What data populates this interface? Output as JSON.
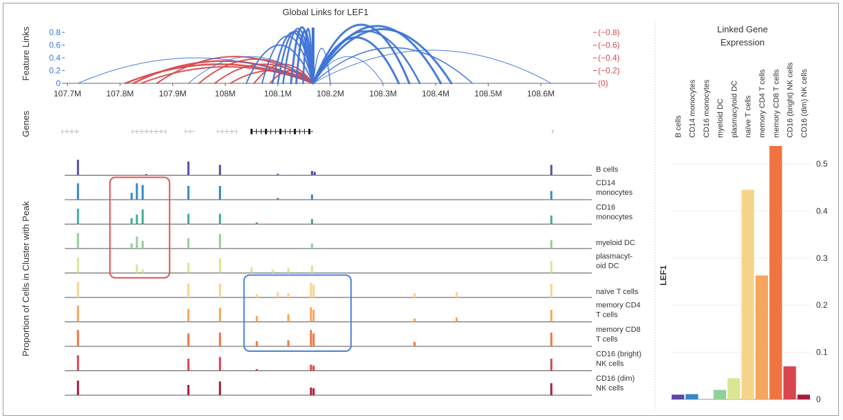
{
  "chart_data": {
    "type": "genome-track",
    "arc_plot": {
      "title": "Global Links for LEF1",
      "ylabel": "Feature Links",
      "left_ticks": [
        "0",
        "0.2",
        "0.4",
        "0.6",
        "0.8"
      ],
      "right_ticks": [
        "(0)",
        "(−0.2)",
        "(−0.4)",
        "(−0.6)",
        "(−0.8)"
      ],
      "x_ticks": [
        "107.7M",
        "107.8M",
        "107.9M",
        "108M",
        "108.1M",
        "108.2M",
        "108.3M",
        "108.4M",
        "108.5M",
        "108.6M"
      ],
      "xlim": [
        107.69,
        108.625
      ],
      "anchor": 108.167,
      "positive_colour": "#3f74d6",
      "negative_colour": "#d84a4a",
      "positive_links": [
        {
          "x": 107.72,
          "h": 0.4,
          "w": 1
        },
        {
          "x": 107.93,
          "h": 0.42,
          "w": 1
        },
        {
          "x": 108.04,
          "h": 0.6,
          "w": 2
        },
        {
          "x": 108.07,
          "h": 0.74,
          "w": 2
        },
        {
          "x": 108.09,
          "h": 0.8,
          "w": 2.5
        },
        {
          "x": 108.1,
          "h": 0.82,
          "w": 2.5
        },
        {
          "x": 108.11,
          "h": 0.86,
          "w": 2.5
        },
        {
          "x": 108.125,
          "h": 0.88,
          "w": 3
        },
        {
          "x": 108.135,
          "h": 0.82,
          "w": 3
        },
        {
          "x": 108.148,
          "h": 0.86,
          "w": 2.5
        },
        {
          "x": 108.2,
          "h": 0.55,
          "w": 1.5
        },
        {
          "x": 108.3,
          "h": 0.42,
          "w": 1
        },
        {
          "x": 108.33,
          "h": 0.72,
          "w": 3
        },
        {
          "x": 108.35,
          "h": 0.92,
          "w": 3
        },
        {
          "x": 108.37,
          "h": 0.82,
          "w": 2.5
        },
        {
          "x": 108.41,
          "h": 0.9,
          "w": 3
        },
        {
          "x": 108.43,
          "h": 0.85,
          "w": 3
        },
        {
          "x": 108.47,
          "h": 0.56,
          "w": 1.5
        },
        {
          "x": 108.62,
          "h": 0.52,
          "w": 1
        }
      ],
      "negative_links": [
        {
          "x": 107.81,
          "h": 0.3,
          "w": 2.5
        },
        {
          "x": 107.825,
          "h": 0.35,
          "w": 2.5
        },
        {
          "x": 107.84,
          "h": 0.26,
          "w": 2
        },
        {
          "x": 107.87,
          "h": 0.42,
          "w": 2
        },
        {
          "x": 107.95,
          "h": 0.38,
          "w": 2
        },
        {
          "x": 107.98,
          "h": 0.3,
          "w": 2
        },
        {
          "x": 108.01,
          "h": 0.2,
          "w": 2
        },
        {
          "x": 108.055,
          "h": 0.3,
          "w": 2
        },
        {
          "x": 108.085,
          "h": 0.2,
          "w": 2
        }
      ]
    },
    "genes_track": {
      "ylabel": "Genes",
      "genes": [
        {
          "start": 107.69,
          "end": 107.722
        },
        {
          "start": 107.823,
          "end": 107.888
        },
        {
          "start": 107.924,
          "end": 107.942
        },
        {
          "start": 107.985,
          "end": 108.022
        },
        {
          "start": 108.05,
          "end": 108.167,
          "highlight": true
        },
        {
          "start": 108.622,
          "end": 108.625
        }
      ]
    },
    "coverage": {
      "ylabel": "Proportion of Cells in Cluster with Peak",
      "tracks": [
        {
          "label": [
            "B cells"
          ],
          "color": "#5b4aa5",
          "peaks": [
            [
              107.72,
              0.9
            ],
            [
              107.93,
              0.8
            ],
            [
              107.99,
              0.6
            ],
            [
              107.85,
              0.06
            ],
            [
              108.1,
              0.08
            ],
            [
              108.165,
              0.25
            ],
            [
              108.17,
              0.2
            ],
            [
              108.62,
              0.6
            ]
          ]
        },
        {
          "label": [
            "CD14",
            "monocytes"
          ],
          "color": "#3588c1",
          "peaks": [
            [
              107.72,
              0.95
            ],
            [
              107.822,
              0.4
            ],
            [
              107.832,
              0.95
            ],
            [
              107.843,
              0.85
            ],
            [
              107.93,
              0.8
            ],
            [
              107.99,
              0.8
            ],
            [
              108.1,
              0.1
            ],
            [
              108.165,
              0.3
            ],
            [
              108.62,
              0.5
            ]
          ]
        },
        {
          "label": [
            "CD16",
            "monocytes"
          ],
          "color": "#42ab9a",
          "peaks": [
            [
              107.72,
              0.9
            ],
            [
              107.822,
              0.35
            ],
            [
              107.832,
              0.55
            ],
            [
              107.843,
              0.85
            ],
            [
              107.93,
              0.6
            ],
            [
              107.99,
              0.6
            ],
            [
              108.06,
              0.1
            ],
            [
              108.165,
              0.3
            ],
            [
              108.62,
              0.5
            ]
          ]
        },
        {
          "label": [
            "myeloid DC"
          ],
          "color": "#93cf9a",
          "peaks": [
            [
              107.72,
              0.9
            ],
            [
              107.822,
              0.3
            ],
            [
              107.832,
              0.7
            ],
            [
              107.843,
              0.45
            ],
            [
              107.93,
              0.6
            ],
            [
              107.99,
              0.85
            ],
            [
              108.165,
              0.3
            ],
            [
              108.62,
              0.5
            ]
          ]
        },
        {
          "label": [
            "plasmacyt-",
            "oid DC"
          ],
          "color": "#dbe692",
          "peaks": [
            [
              107.72,
              0.9
            ],
            [
              107.832,
              0.5
            ],
            [
              107.843,
              0.2
            ],
            [
              107.93,
              0.6
            ],
            [
              107.99,
              0.85
            ],
            [
              108.05,
              0.35
            ],
            [
              108.09,
              0.2
            ],
            [
              108.12,
              0.3
            ],
            [
              108.165,
              0.45
            ],
            [
              108.62,
              0.7
            ]
          ]
        },
        {
          "label": [
            "naïve T cells"
          ],
          "color": "#f6d48c",
          "peaks": [
            [
              107.72,
              0.9
            ],
            [
              107.93,
              0.8
            ],
            [
              107.99,
              0.8
            ],
            [
              108.06,
              0.2
            ],
            [
              108.1,
              0.3
            ],
            [
              108.12,
              0.25
            ],
            [
              108.163,
              0.85
            ],
            [
              108.168,
              0.75
            ],
            [
              108.36,
              0.25
            ],
            [
              108.44,
              0.3
            ],
            [
              108.62,
              0.8
            ]
          ]
        },
        {
          "label": [
            "memory CD4",
            "T cells"
          ],
          "color": "#f5a55c",
          "peaks": [
            [
              107.72,
              0.95
            ],
            [
              107.93,
              0.75
            ],
            [
              107.99,
              0.8
            ],
            [
              108.06,
              0.35
            ],
            [
              108.12,
              0.45
            ],
            [
              108.163,
              0.85
            ],
            [
              108.168,
              0.7
            ],
            [
              108.36,
              0.2
            ],
            [
              108.44,
              0.25
            ],
            [
              108.62,
              0.7
            ]
          ]
        },
        {
          "label": [
            "memory CD8",
            "T cells"
          ],
          "color": "#f07442",
          "peaks": [
            [
              107.72,
              0.95
            ],
            [
              107.93,
              0.75
            ],
            [
              107.99,
              0.8
            ],
            [
              108.06,
              0.3
            ],
            [
              108.12,
              0.35
            ],
            [
              108.163,
              0.95
            ],
            [
              108.168,
              0.75
            ],
            [
              108.36,
              0.25
            ],
            [
              108.62,
              0.8
            ]
          ]
        },
        {
          "label": [
            "CD16 (bright)",
            "NK cells"
          ],
          "color": "#d9464c",
          "peaks": [
            [
              107.72,
              0.9
            ],
            [
              107.93,
              0.7
            ],
            [
              107.99,
              0.8
            ],
            [
              108.06,
              0.1
            ],
            [
              108.163,
              0.35
            ],
            [
              108.168,
              0.3
            ],
            [
              108.62,
              0.7
            ]
          ]
        },
        {
          "label": [
            "CD16 (dim)",
            "NK cells"
          ],
          "color": "#a61c3c",
          "peaks": [
            [
              107.72,
              0.85
            ],
            [
              107.93,
              0.6
            ],
            [
              107.99,
              0.8
            ],
            [
              108.163,
              0.45
            ],
            [
              108.168,
              0.4
            ],
            [
              108.62,
              0.7
            ]
          ]
        }
      ]
    },
    "expression": {
      "type": "bar",
      "title": [
        "Linked Gene",
        "Expression"
      ],
      "ylabel": "LEF1",
      "y_ticks": [
        "0",
        "0.1",
        "0.2",
        "0.3",
        "0.4",
        "0.5"
      ],
      "ylim": [
        0,
        0.55
      ],
      "categories": [
        "B cells",
        "CD14 monocytes",
        "CD16 monocytes",
        "myeloid DC",
        "plasmacytoid DC",
        "naïve T cells",
        "memory CD4 T cells",
        "memory CD8 T cells",
        "CD16 (bright) NK cells",
        "CD16 (dim) NK cells"
      ],
      "values": [
        0.01,
        0.011,
        0.0,
        0.02,
        0.045,
        0.445,
        0.263,
        0.538,
        0.07,
        0.01
      ],
      "colors": [
        "#5b4aa5",
        "#3588c1",
        "#42ab9a",
        "#93cf9a",
        "#dbe692",
        "#f6d48c",
        "#f5a55c",
        "#f07442",
        "#d9464c",
        "#a61c3c"
      ]
    },
    "annotations": [
      {
        "name": "red-box",
        "color": "#e05050",
        "x_range": [
          107.82,
          107.855
        ],
        "tracks": [
          1,
          4
        ]
      },
      {
        "name": "blue-box",
        "color": "#4a7fd8",
        "x_range": [
          108.075,
          108.2
        ],
        "tracks": [
          5,
          7
        ]
      }
    ]
  }
}
